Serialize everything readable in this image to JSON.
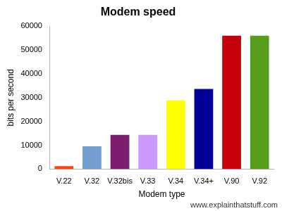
{
  "chart_data": {
    "type": "bar",
    "title": "Modem speed",
    "x_label": "Modem type",
    "y_label": "bits per second",
    "categories": [
      "V.22",
      "V.32",
      "V.32bis",
      "V.33",
      "V.34",
      "V.34+",
      "V.90",
      "V.92"
    ],
    "values": [
      1200,
      9600,
      14400,
      14400,
      28800,
      33600,
      56000,
      56000
    ],
    "colors": [
      "#ff420e",
      "#729fcf",
      "#7b1e6e",
      "#cc99ff",
      "#ffff00",
      "#000099",
      "#c5000b",
      "#579d1c"
    ],
    "ylim": [
      0,
      60000
    ],
    "yticks": [
      0,
      10000,
      20000,
      30000,
      40000,
      50000,
      60000
    ],
    "grid": false,
    "annotations": [
      "www.explainthatstuff.com"
    ]
  }
}
